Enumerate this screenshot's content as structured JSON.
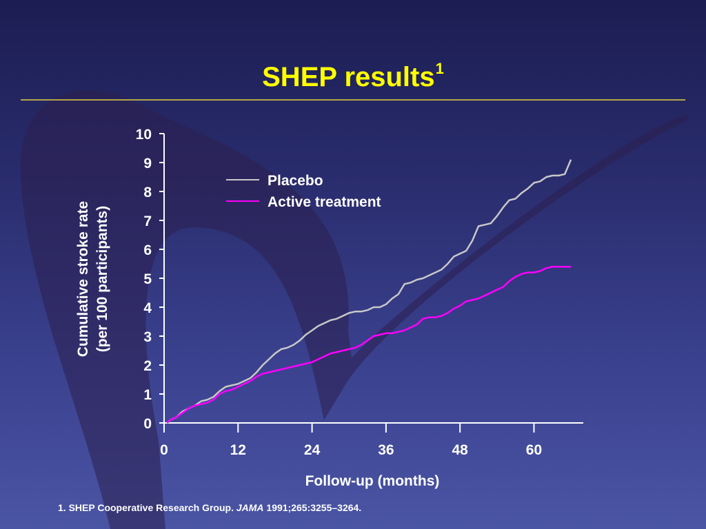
{
  "slide": {
    "title": "SHEP results",
    "title_sup": "1",
    "footnote": {
      "number": "1.",
      "text_before": "SHEP Cooperative Research Group.",
      "journal": "JAMA",
      "text_after": "1991;265:3255–3264."
    }
  },
  "colors": {
    "title": "#ffff00",
    "placebo": "#c8c8c8",
    "active": "#ff00ff",
    "axis": "#ffffff"
  },
  "chart_data": {
    "type": "line",
    "xlabel": "Follow-up (months)",
    "ylabel_line1": "Cumulative stroke rate",
    "ylabel_line2": "(per 100 participants)",
    "xlim": [
      0,
      68
    ],
    "ylim": [
      0,
      10
    ],
    "x_ticks": [
      0,
      12,
      24,
      36,
      48,
      60
    ],
    "y_ticks": [
      0,
      1,
      2,
      3,
      4,
      5,
      6,
      7,
      8,
      9,
      10
    ],
    "legend_position": "top-left",
    "series": [
      {
        "name": "Placebo",
        "color": "#c8c8c8",
        "points": [
          [
            0.5,
            0
          ],
          [
            1,
            0.1
          ],
          [
            2,
            0.2
          ],
          [
            3,
            0.4
          ],
          [
            4,
            0.5
          ],
          [
            5,
            0.6
          ],
          [
            6,
            0.75
          ],
          [
            7,
            0.8
          ],
          [
            8,
            0.9
          ],
          [
            9,
            1.1
          ],
          [
            10,
            1.25
          ],
          [
            11,
            1.3
          ],
          [
            12,
            1.35
          ],
          [
            13,
            1.45
          ],
          [
            14,
            1.55
          ],
          [
            15,
            1.75
          ],
          [
            16,
            2.0
          ],
          [
            17,
            2.2
          ],
          [
            18,
            2.4
          ],
          [
            19,
            2.55
          ],
          [
            20,
            2.6
          ],
          [
            21,
            2.7
          ],
          [
            22,
            2.85
          ],
          [
            23,
            3.05
          ],
          [
            24,
            3.2
          ],
          [
            25,
            3.35
          ],
          [
            26,
            3.45
          ],
          [
            27,
            3.55
          ],
          [
            28,
            3.6
          ],
          [
            29,
            3.7
          ],
          [
            30,
            3.8
          ],
          [
            31,
            3.85
          ],
          [
            32,
            3.85
          ],
          [
            33,
            3.9
          ],
          [
            34,
            4.0
          ],
          [
            35,
            4.0
          ],
          [
            36,
            4.1
          ],
          [
            37,
            4.3
          ],
          [
            38,
            4.45
          ],
          [
            39,
            4.8
          ],
          [
            40,
            4.85
          ],
          [
            41,
            4.95
          ],
          [
            42,
            5.0
          ],
          [
            43,
            5.1
          ],
          [
            44,
            5.2
          ],
          [
            45,
            5.3
          ],
          [
            46,
            5.5
          ],
          [
            47,
            5.75
          ],
          [
            48,
            5.85
          ],
          [
            49,
            5.95
          ],
          [
            50,
            6.3
          ],
          [
            51,
            6.8
          ],
          [
            52,
            6.85
          ],
          [
            53,
            6.9
          ],
          [
            54,
            7.15
          ],
          [
            55,
            7.45
          ],
          [
            56,
            7.7
          ],
          [
            57,
            7.75
          ],
          [
            58,
            7.95
          ],
          [
            59,
            8.1
          ],
          [
            60,
            8.3
          ],
          [
            61,
            8.35
          ],
          [
            62,
            8.5
          ],
          [
            63,
            8.55
          ],
          [
            64,
            8.55
          ],
          [
            65,
            8.6
          ],
          [
            66,
            9.1
          ]
        ]
      },
      {
        "name": "Active treatment",
        "color": "#ff00ff",
        "points": [
          [
            0.5,
            0
          ],
          [
            1,
            0.1
          ],
          [
            2,
            0.2
          ],
          [
            3,
            0.35
          ],
          [
            4,
            0.5
          ],
          [
            5,
            0.6
          ],
          [
            6,
            0.65
          ],
          [
            7,
            0.7
          ],
          [
            8,
            0.8
          ],
          [
            9,
            1.0
          ],
          [
            10,
            1.1
          ],
          [
            11,
            1.15
          ],
          [
            12,
            1.25
          ],
          [
            13,
            1.35
          ],
          [
            14,
            1.45
          ],
          [
            15,
            1.6
          ],
          [
            16,
            1.7
          ],
          [
            17,
            1.75
          ],
          [
            18,
            1.8
          ],
          [
            19,
            1.85
          ],
          [
            20,
            1.9
          ],
          [
            21,
            1.95
          ],
          [
            22,
            2.0
          ],
          [
            23,
            2.05
          ],
          [
            24,
            2.1
          ],
          [
            25,
            2.2
          ],
          [
            26,
            2.3
          ],
          [
            27,
            2.4
          ],
          [
            28,
            2.45
          ],
          [
            29,
            2.5
          ],
          [
            30,
            2.55
          ],
          [
            31,
            2.6
          ],
          [
            32,
            2.7
          ],
          [
            33,
            2.85
          ],
          [
            34,
            3.0
          ],
          [
            35,
            3.05
          ],
          [
            36,
            3.1
          ],
          [
            37,
            3.1
          ],
          [
            38,
            3.15
          ],
          [
            39,
            3.2
          ],
          [
            40,
            3.3
          ],
          [
            41,
            3.4
          ],
          [
            42,
            3.6
          ],
          [
            43,
            3.65
          ],
          [
            44,
            3.65
          ],
          [
            45,
            3.7
          ],
          [
            46,
            3.8
          ],
          [
            47,
            3.95
          ],
          [
            48,
            4.05
          ],
          [
            49,
            4.2
          ],
          [
            50,
            4.25
          ],
          [
            51,
            4.3
          ],
          [
            52,
            4.4
          ],
          [
            53,
            4.5
          ],
          [
            54,
            4.6
          ],
          [
            55,
            4.7
          ],
          [
            56,
            4.9
          ],
          [
            57,
            5.05
          ],
          [
            58,
            5.15
          ],
          [
            59,
            5.2
          ],
          [
            60,
            5.2
          ],
          [
            61,
            5.25
          ],
          [
            62,
            5.35
          ],
          [
            63,
            5.4
          ],
          [
            64,
            5.4
          ],
          [
            65,
            5.4
          ],
          [
            66,
            5.4
          ]
        ]
      }
    ]
  }
}
